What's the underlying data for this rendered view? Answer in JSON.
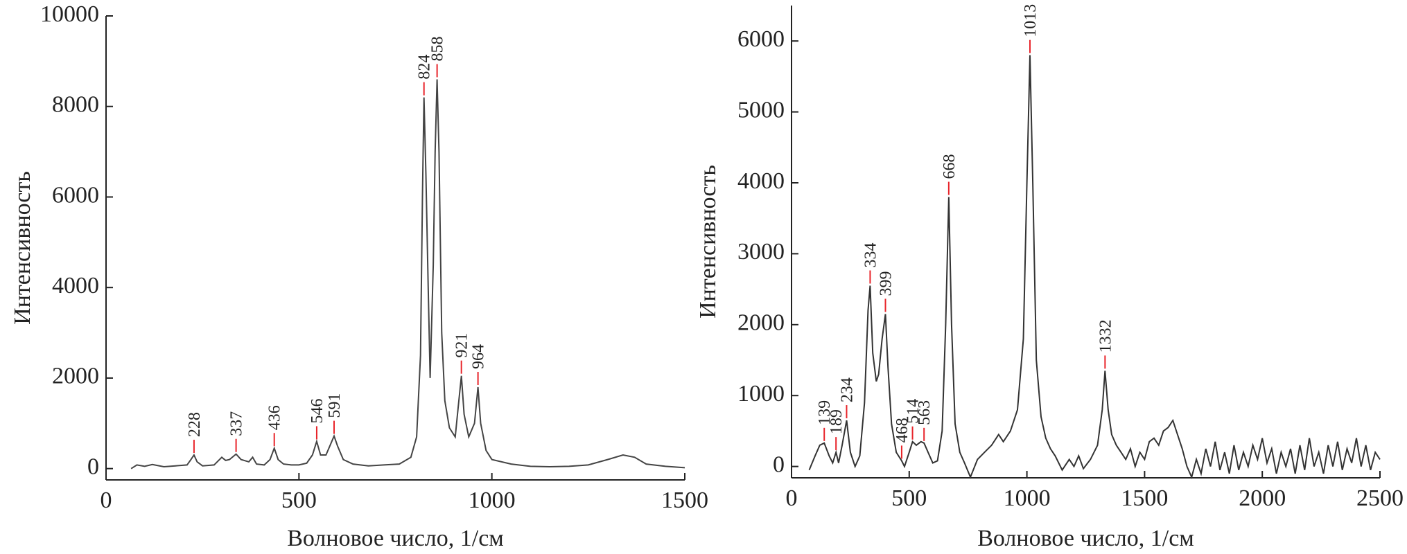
{
  "chart_data": [
    {
      "type": "line",
      "xlabel": "Волновое число, 1/см",
      "ylabel": "Интенсивность",
      "color": "#444444",
      "peak_color": "#e8242a",
      "xlim": [
        0,
        1500
      ],
      "ylim": [
        -250,
        10000
      ],
      "xticks": [
        0,
        500,
        1000,
        1500
      ],
      "yticks": [
        0,
        2000,
        4000,
        6000,
        8000,
        10000
      ],
      "x": [
        65,
        80,
        100,
        120,
        150,
        180,
        210,
        220,
        228,
        236,
        250,
        280,
        300,
        310,
        320,
        337,
        350,
        370,
        380,
        390,
        410,
        425,
        436,
        446,
        460,
        480,
        500,
        520,
        535,
        546,
        556,
        570,
        580,
        591,
        600,
        615,
        640,
        680,
        720,
        760,
        790,
        805,
        815,
        820,
        824,
        829,
        835,
        840,
        848,
        853,
        858,
        863,
        870,
        878,
        890,
        905,
        912,
        921,
        928,
        940,
        955,
        964,
        971,
        985,
        1000,
        1050,
        1100,
        1150,
        1200,
        1250,
        1300,
        1340,
        1370,
        1400,
        1450,
        1500
      ],
      "values": [
        0,
        80,
        50,
        90,
        40,
        60,
        80,
        200,
        300,
        150,
        60,
        80,
        250,
        180,
        200,
        320,
        200,
        150,
        250,
        100,
        80,
        200,
        450,
        200,
        100,
        80,
        80,
        120,
        300,
        600,
        300,
        300,
        500,
        720,
        500,
        200,
        100,
        60,
        80,
        100,
        250,
        700,
        2500,
        6000,
        8200,
        6500,
        4000,
        2000,
        4500,
        7000,
        8600,
        7000,
        3000,
        1500,
        900,
        700,
        1300,
        2050,
        1200,
        700,
        1000,
        1800,
        1000,
        400,
        200,
        100,
        50,
        40,
        50,
        80,
        200,
        300,
        250,
        100,
        50,
        20
      ],
      "peaks": [
        {
          "x": 228,
          "y": 300
        },
        {
          "x": 337,
          "y": 320
        },
        {
          "x": 436,
          "y": 450
        },
        {
          "x": 546,
          "y": 600
        },
        {
          "x": 591,
          "y": 720
        },
        {
          "x": 824,
          "y": 8200
        },
        {
          "x": 858,
          "y": 8600
        },
        {
          "x": 921,
          "y": 2050
        },
        {
          "x": 964,
          "y": 1800
        }
      ]
    },
    {
      "type": "line",
      "xlabel": "Волновое число, 1/см",
      "ylabel": "Интенсивность",
      "color": "#333333",
      "peak_color": "#e8242a",
      "xlim": [
        0,
        2500
      ],
      "ylim": [
        -160,
        6500
      ],
      "xticks": [
        0,
        500,
        1000,
        1500,
        2000,
        2500
      ],
      "yticks": [
        0,
        1000,
        2000,
        3000,
        4000,
        5000,
        6000
      ],
      "x": [
        75,
        100,
        120,
        139,
        160,
        175,
        189,
        200,
        215,
        234,
        250,
        270,
        290,
        310,
        325,
        334,
        345,
        360,
        370,
        385,
        399,
        410,
        425,
        445,
        468,
        480,
        500,
        514,
        530,
        550,
        563,
        580,
        600,
        620,
        640,
        655,
        668,
        680,
        695,
        715,
        735,
        760,
        790,
        820,
        850,
        880,
        900,
        930,
        960,
        985,
        1000,
        1013,
        1025,
        1040,
        1060,
        1080,
        1100,
        1120,
        1150,
        1180,
        1200,
        1220,
        1240,
        1270,
        1300,
        1320,
        1332,
        1345,
        1360,
        1380,
        1400,
        1420,
        1440,
        1460,
        1480,
        1500,
        1520,
        1540,
        1560,
        1580,
        1600,
        1620,
        1640,
        1660,
        1680,
        1700,
        1720,
        1740,
        1760,
        1780,
        1800,
        1820,
        1840,
        1860,
        1880,
        1900,
        1920,
        1940,
        1960,
        1980,
        2000,
        2020,
        2040,
        2060,
        2080,
        2100,
        2120,
        2140,
        2160,
        2180,
        2200,
        2220,
        2240,
        2260,
        2280,
        2300,
        2320,
        2340,
        2360,
        2380,
        2400,
        2420,
        2440,
        2460,
        2480,
        2500
      ],
      "values": [
        -50,
        150,
        300,
        330,
        150,
        50,
        200,
        50,
        300,
        650,
        200,
        0,
        150,
        900,
        2200,
        2550,
        1600,
        1200,
        1300,
        1800,
        2150,
        1400,
        600,
        200,
        80,
        0,
        200,
        350,
        300,
        350,
        330,
        200,
        50,
        80,
        500,
        2000,
        3800,
        2000,
        600,
        200,
        50,
        -150,
        100,
        200,
        300,
        450,
        350,
        500,
        800,
        1800,
        4000,
        5800,
        4000,
        1500,
        700,
        400,
        250,
        150,
        -50,
        100,
        0,
        150,
        -30,
        100,
        300,
        800,
        1350,
        800,
        450,
        300,
        200,
        100,
        250,
        0,
        200,
        100,
        350,
        400,
        300,
        500,
        550,
        650,
        450,
        250,
        0,
        -150,
        100,
        -100,
        250,
        0,
        350,
        -50,
        200,
        -100,
        300,
        -50,
        200,
        0,
        300,
        100,
        400,
        50,
        250,
        -100,
        200,
        0,
        250,
        -100,
        300,
        -50,
        400,
        0,
        200,
        -100,
        300,
        0,
        350,
        -50,
        250,
        50,
        400,
        0,
        300,
        -50,
        200,
        100
      ],
      "peaks": [
        {
          "x": 139,
          "y": 330
        },
        {
          "x": 189,
          "y": 200
        },
        {
          "x": 234,
          "y": 650
        },
        {
          "x": 334,
          "y": 2550
        },
        {
          "x": 399,
          "y": 2150
        },
        {
          "x": 468,
          "y": 80
        },
        {
          "x": 514,
          "y": 350
        },
        {
          "x": 563,
          "y": 330
        },
        {
          "x": 668,
          "y": 3800
        },
        {
          "x": 1013,
          "y": 5800
        },
        {
          "x": 1332,
          "y": 1350
        }
      ]
    }
  ]
}
